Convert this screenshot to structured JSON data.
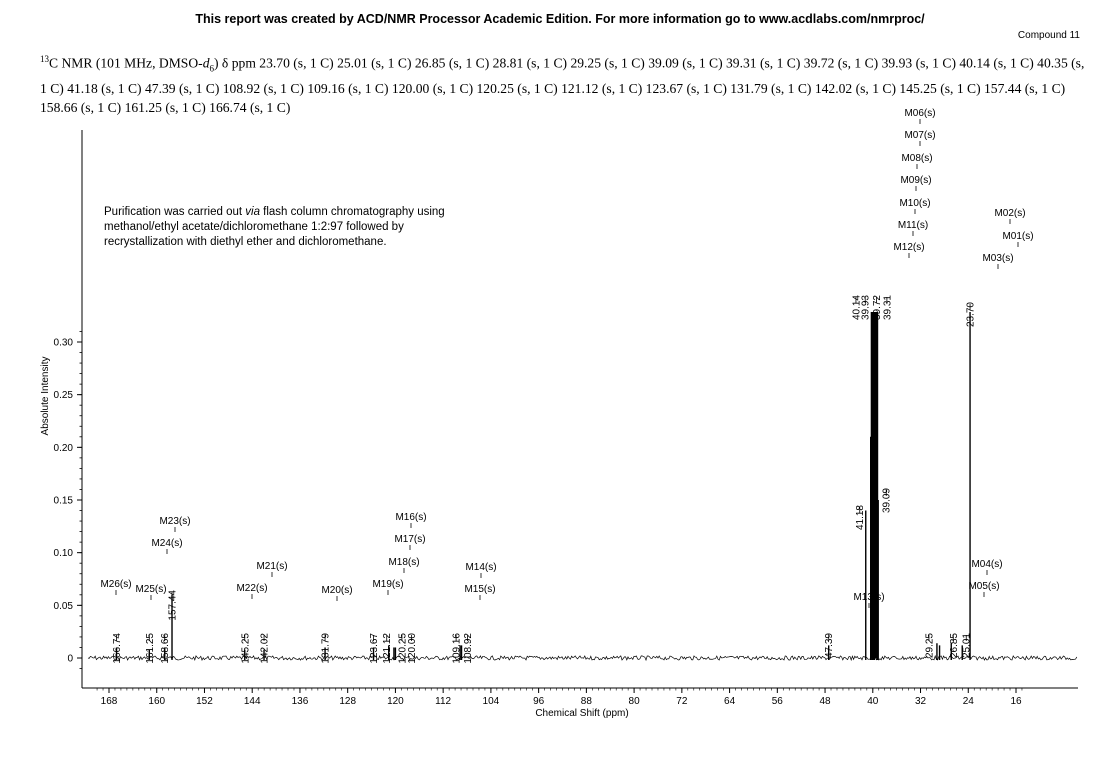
{
  "header": {
    "report_line": "This report was created by ACD/NMR Processor Academic Edition. For more information go to www.acdlabs.com/nmrproc/",
    "compound": "Compound 11"
  },
  "nmr_text": {
    "nucleus_sup": "13",
    "prefix": "C NMR (101 MHz, DMSO-",
    "solvent_d": "d",
    "solvent_sub": "6",
    "suffix": ") δ ppm 23.70 (s, 1 C) 25.01 (s, 1 C) 26.85 (s, 1 C) 28.81 (s, 1 C) 29.25 (s, 1 C) 39.09 (s, 1 C) 39.31 (s, 1 C) 39.72 (s, 1 C) 39.93 (s, 1 C) 40.14 (s, 1 C) 40.35 (s, 1 C) 41.18 (s, 1 C) 47.39 (s, 1 C) 108.92 (s, 1 C) 109.16 (s, 1 C) 120.00 (s, 1 C) 120.25 (s, 1 C) 121.12 (s, 1 C) 123.67 (s, 1 C) 131.79 (s, 1 C) 142.02 (s, 1 C) 145.25 (s, 1 C) 157.44 (s, 1 C) 158.66 (s, 1 C) 161.25 (s, 1 C) 166.74 (s, 1 C)"
  },
  "note": {
    "line1_a": "Purification was carried out ",
    "line1_italic": "via",
    "line1_b": " flash column chromatography using",
    "line2": "methanol/ethyl acetate/dichloromethane 1:2:97 followed by",
    "line3": "recrystallization with diethyl ether and dichloromethane."
  },
  "chart_data": {
    "type": "line",
    "xlabel": "Chemical Shift (ppm)",
    "ylabel": "Absolute Intensity",
    "xlim": [
      170,
      15
    ],
    "ylim": [
      -0.02,
      0.33
    ],
    "x_reversed": true,
    "x_ticks": [
      168,
      160,
      152,
      144,
      136,
      128,
      120,
      112,
      104,
      96,
      88,
      80,
      72,
      64,
      56,
      48,
      40,
      32,
      24,
      16
    ],
    "y_ticks": [
      "0",
      "0.05",
      "0.10",
      "0.15",
      "0.20",
      "0.25",
      "0.30"
    ],
    "y_tick_values": [
      0,
      0.05,
      0.1,
      0.15,
      0.2,
      0.25,
      0.3
    ],
    "series": [
      {
        "peaks": [
          {
            "ppm": 23.7,
            "label": "23.70",
            "intensity": 0.33
          },
          {
            "ppm": 25.01,
            "label": "25.01",
            "intensity": 0.012
          },
          {
            "ppm": 26.85,
            "label": "26.85",
            "intensity": 0.014
          },
          {
            "ppm": 28.81,
            "label": "",
            "intensity": 0.012
          },
          {
            "ppm": 29.25,
            "label": "29.25",
            "intensity": 0.014
          },
          {
            "ppm": 39.09,
            "label": "39.09",
            "intensity": 0.15
          },
          {
            "ppm": 39.31,
            "label": "39.31",
            "intensity": 0.33
          },
          {
            "ppm": 39.72,
            "label": "39.72",
            "intensity": 0.33
          },
          {
            "ppm": 39.93,
            "label": "39.93",
            "intensity": 0.33
          },
          {
            "ppm": 40.14,
            "label": "40.14",
            "intensity": 0.33
          },
          {
            "ppm": 40.35,
            "label": "",
            "intensity": 0.21
          },
          {
            "ppm": 41.18,
            "label": "41.18",
            "intensity": 0.14
          },
          {
            "ppm": 47.39,
            "label": "47.39",
            "intensity": 0.012
          },
          {
            "ppm": 108.92,
            "label": "108.92",
            "intensity": 0.012
          },
          {
            "ppm": 109.16,
            "label": "109.16",
            "intensity": 0.012
          },
          {
            "ppm": 120.0,
            "label": "120.00",
            "intensity": 0.01
          },
          {
            "ppm": 120.25,
            "label": "120.25",
            "intensity": 0.01
          },
          {
            "ppm": 121.12,
            "label": "121.12",
            "intensity": 0.012
          },
          {
            "ppm": 123.67,
            "label": "123.67",
            "intensity": 0.01
          },
          {
            "ppm": 131.79,
            "label": "131.79",
            "intensity": 0.01
          },
          {
            "ppm": 142.02,
            "label": "142.02",
            "intensity": 0.008
          },
          {
            "ppm": 145.25,
            "label": "145.25",
            "intensity": 0.008
          },
          {
            "ppm": 157.44,
            "label": "157.44",
            "intensity": 0.06
          },
          {
            "ppm": 158.66,
            "label": "158.66",
            "intensity": 0.01
          },
          {
            "ppm": 161.25,
            "label": "161.25",
            "intensity": 0.008
          },
          {
            "ppm": 166.74,
            "label": "166.74",
            "intensity": 0.01
          }
        ]
      }
    ],
    "multiplet_labels": [
      {
        "label": "M01(s)",
        "ppm": 23.7
      },
      {
        "label": "M02(s)",
        "ppm": 23.7
      },
      {
        "label": "M03(s)",
        "ppm": 23.7
      },
      {
        "label": "M04(s)",
        "ppm": 26.85
      },
      {
        "label": "M05(s)",
        "ppm": 26.85
      },
      {
        "label": "M06(s)",
        "ppm": 39.72
      },
      {
        "label": "M07(s)",
        "ppm": 39.72
      },
      {
        "label": "M08(s)",
        "ppm": 39.72
      },
      {
        "label": "M09(s)",
        "ppm": 39.72
      },
      {
        "label": "M10(s)",
        "ppm": 39.72
      },
      {
        "label": "M11(s)",
        "ppm": 39.72
      },
      {
        "label": "M12(s)",
        "ppm": 39.72
      },
      {
        "label": "M13(s)",
        "ppm": 47.39
      },
      {
        "label": "M14(s)",
        "ppm": 109.16
      },
      {
        "label": "M15(s)",
        "ppm": 109.16
      },
      {
        "label": "M16(s)",
        "ppm": 120.25
      },
      {
        "label": "M17(s)",
        "ppm": 120.25
      },
      {
        "label": "M18(s)",
        "ppm": 120.25
      },
      {
        "label": "M19(s)",
        "ppm": 123.67
      },
      {
        "label": "M20(s)",
        "ppm": 131.79
      },
      {
        "label": "M21(s)",
        "ppm": 142.02
      },
      {
        "label": "M22(s)",
        "ppm": 145.25
      },
      {
        "label": "M23(s)",
        "ppm": 157.44
      },
      {
        "label": "M24(s)",
        "ppm": 157.44
      },
      {
        "label": "M25(s)",
        "ppm": 161.25
      },
      {
        "label": "M26(s)",
        "ppm": 166.74
      }
    ]
  }
}
